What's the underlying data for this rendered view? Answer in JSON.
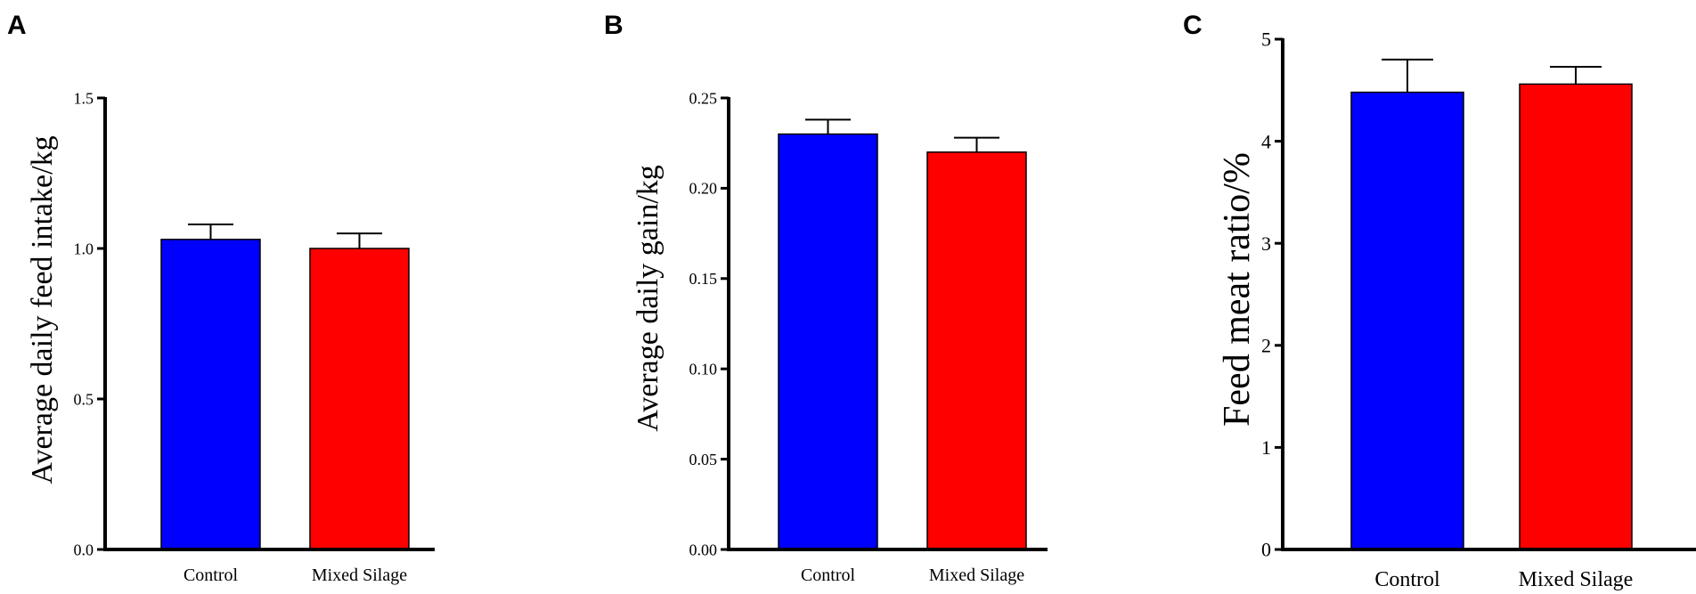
{
  "chart_data": [
    {
      "type": "bar",
      "panel": "A",
      "title": "",
      "xlabel": "",
      "ylabel": "Average daily feed intake/kg",
      "categories": [
        "Control",
        "Mixed Silage"
      ],
      "values": [
        1.03,
        1.0
      ],
      "error": [
        0.05,
        0.05
      ],
      "ylim": [
        0,
        1.5
      ],
      "yticks": [
        0.0,
        0.5,
        1.0,
        1.5
      ],
      "ytick_labels": [
        "0.0",
        "0.5",
        "1.0",
        "1.5"
      ],
      "colors": [
        "#0000ff",
        "#ff0000"
      ],
      "grid": false
    },
    {
      "type": "bar",
      "panel": "B",
      "title": "",
      "xlabel": "",
      "ylabel": "Average daily gain/kg",
      "categories": [
        "Control",
        "Mixed Silage"
      ],
      "values": [
        0.23,
        0.22
      ],
      "error": [
        0.008,
        0.008
      ],
      "ylim": [
        0,
        0.25
      ],
      "yticks": [
        0.0,
        0.05,
        0.1,
        0.15,
        0.2,
        0.25
      ],
      "ytick_labels": [
        "0.00",
        "0.05",
        "0.10",
        "0.15",
        "0.20",
        "0.25"
      ],
      "colors": [
        "#0000ff",
        "#ff0000"
      ],
      "grid": false
    },
    {
      "type": "bar",
      "panel": "C",
      "title": "",
      "xlabel": "",
      "ylabel": "Feed meat ratio/%",
      "categories": [
        "Control",
        "Mixed Silage"
      ],
      "values": [
        4.48,
        4.56
      ],
      "error": [
        0.32,
        0.17
      ],
      "ylim": [
        0,
        5
      ],
      "yticks": [
        0,
        1,
        2,
        3,
        4,
        5
      ],
      "ytick_labels": [
        "0",
        "1",
        "2",
        "3",
        "4",
        "5"
      ],
      "colors": [
        "#0000ff",
        "#ff0000"
      ],
      "grid": false
    }
  ]
}
